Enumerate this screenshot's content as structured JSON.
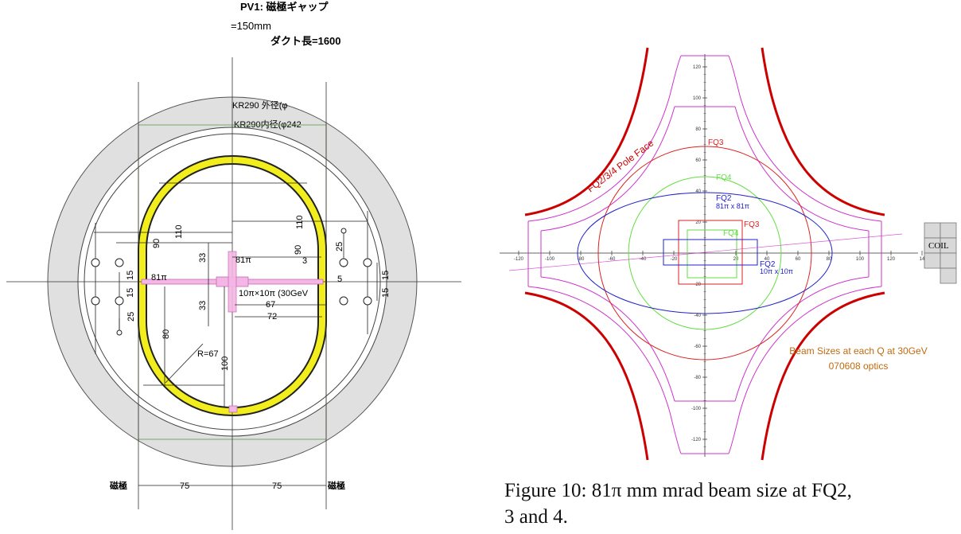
{
  "left_figure": {
    "header": {
      "line1": "PV1: 磁極ギャップ",
      "line2": "=150mm",
      "line3": "ダクト長=1600"
    },
    "outer_label": "KR290 外径(φ",
    "inner_label": "KR290内径(φ242",
    "pole_left": "磁極",
    "pole_right": "磁極",
    "dim_75_left": "75",
    "dim_75_right": "75",
    "d90a": "90",
    "d110a": "110",
    "d110b": "110",
    "d90b": "90",
    "d25a": "25",
    "d33a": "33",
    "d81pi_v": "81π",
    "d3": "3",
    "d5": "5",
    "d81pi_h": "81π",
    "d15a": "15",
    "d15b": "15",
    "d15c": "15",
    "d15d": "15",
    "d10pi": "10π×10π (30GeV",
    "d67": "67",
    "d33b": "33",
    "d72": "72",
    "d25b": "25",
    "d80": "80",
    "dR67": "R=67",
    "d100": "100"
  },
  "right_figure": {
    "pole_face_label": "FQ2/3/4 Pole Face",
    "fq3": "FQ3",
    "fq4": "FQ4",
    "fq2": "FQ2",
    "fq2_sub": "81π x 81π",
    "fq3_small": "FQ3",
    "fq4_small": "FQ4",
    "fq2_small": "FQ2",
    "fq2_small_sub": "10π x 10π",
    "coil": "COIL",
    "beam_title": "Beam Sizes at each Q at 30GeV",
    "beam_sub": "070608 optics",
    "x_ticks": [
      "-120",
      "-100",
      "-80",
      "-60",
      "-40",
      "-20",
      "20",
      "40",
      "60",
      "80",
      "100",
      "120",
      "14"
    ],
    "y_ticks": [
      "120",
      "100",
      "80",
      "60",
      "40",
      "20",
      "-20",
      "-40",
      "-60",
      "-80",
      "-100",
      "-120"
    ],
    "colors": {
      "pole": "#cc0000",
      "fq3": "#dd2222",
      "fq4": "#66dd44",
      "fq2": "#2222cc",
      "magenta": "#cc33cc",
      "beam_text": "#c06a10"
    }
  },
  "caption": {
    "line1": "Figure 10: 81π mm mrad beam size at FQ2,",
    "line2": "3 and 4."
  }
}
